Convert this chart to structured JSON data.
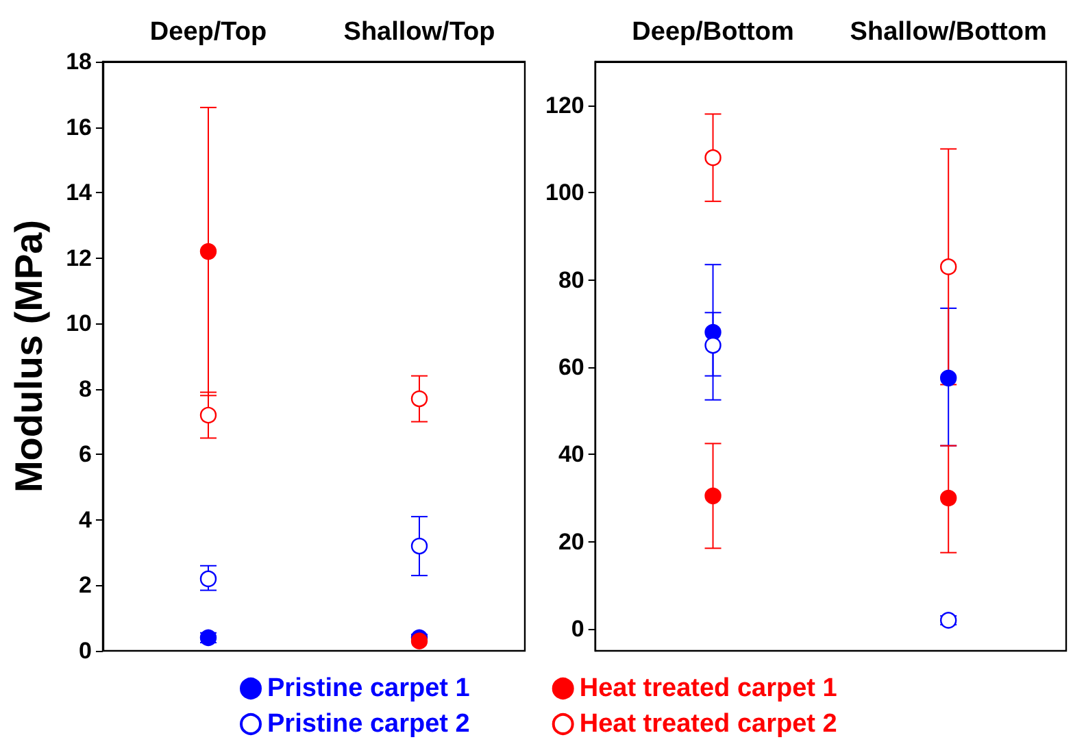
{
  "chart_data": [
    {
      "type": "scatter",
      "ylabel": "Modulus (MPa)",
      "categories": [
        "Deep/Top",
        "Shallow/Top"
      ],
      "ylim": [
        0,
        18
      ],
      "yticks": [
        0,
        2,
        4,
        6,
        8,
        10,
        12,
        14,
        16,
        18
      ],
      "legend": "bottom",
      "marker": "circle",
      "grid": false,
      "series": [
        {
          "name": "Pristine carpet 1",
          "color": "#0000ff",
          "values": [
            0.4,
            0.4
          ],
          "errors": [
            0.15,
            0.1
          ]
        },
        {
          "name": "Pristine carpet 2",
          "color": "#0000ff",
          "values": [
            2.2,
            3.2
          ],
          "errors": [
            [
              1.85,
              2.6
            ],
            [
              2.3,
              4.1
            ]
          ]
        },
        {
          "name": "Heat treated carpet 1",
          "color": "#ff0000",
          "values": [
            12.2,
            0.3
          ],
          "errors": [
            [
              7.8,
              16.6
            ],
            null
          ]
        },
        {
          "name": "Heat treated carpet 2",
          "color": "#ff0000",
          "values": [
            7.2,
            7.7
          ],
          "errors": [
            [
              6.5,
              7.9
            ],
            [
              7.0,
              8.4
            ]
          ]
        }
      ]
    },
    {
      "type": "scatter",
      "categories": [
        "Deep/Bottom",
        "Shallow/Bottom"
      ],
      "ylim": [
        -5,
        130
      ],
      "yticks": [
        0,
        20,
        40,
        60,
        80,
        100,
        120
      ],
      "marker": "circle",
      "grid": false,
      "series": [
        {
          "color": "#0000ff",
          "values": [
            68,
            57.5
          ],
          "errors": [
            [
              52.5,
              83.5
            ],
            [
              42,
              73.5
            ]
          ]
        },
        {
          "color": "#0000ff",
          "values": [
            65,
            2
          ],
          "errors": [
            [
              58,
              72.5
            ],
            [
              1,
              3
            ]
          ]
        },
        {
          "color": "#ff0000",
          "values": [
            30.5,
            30
          ],
          "errors": [
            [
              18.5,
              42.5
            ],
            [
              17.5,
              42
            ]
          ]
        },
        {
          "color": "#ff0000",
          "values": [
            108,
            83
          ],
          "errors": [
            [
              98,
              118
            ],
            [
              56,
              110
            ]
          ]
        }
      ]
    }
  ]
}
